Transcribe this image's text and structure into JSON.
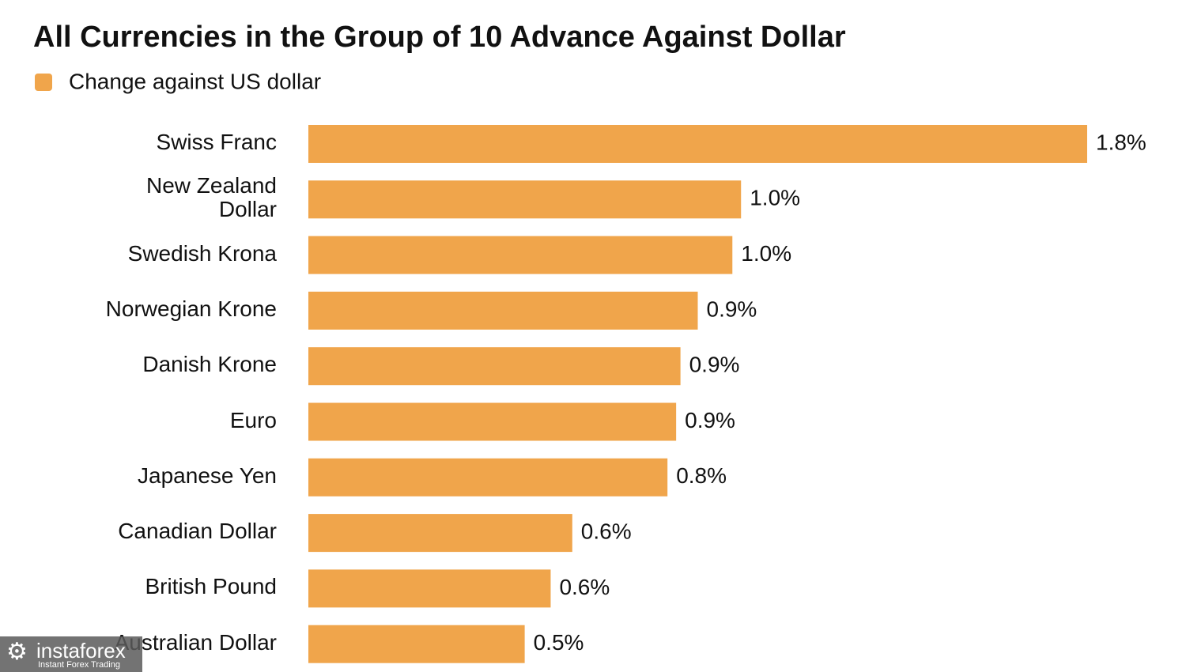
{
  "chart_data": {
    "type": "hbar",
    "title": "All Currencies in the Group of 10 Advance Against Dollar",
    "series": [
      {
        "name": "Change against US dollar",
        "color": "#f0a54b",
        "values": [
          1.8,
          1.0,
          0.98,
          0.9,
          0.86,
          0.85,
          0.83,
          0.61,
          0.56,
          0.5
        ],
        "value_labels": [
          "1.8%",
          "1.0%",
          "1.0%",
          "0.9%",
          "0.9%",
          "0.9%",
          "0.8%",
          "0.6%",
          "0.6%",
          "0.5%"
        ]
      }
    ],
    "categories": [
      "Swiss Franc",
      "New Zealand\nDollar",
      "Swedish Krona",
      "Norwegian Krone",
      "Danish Krone",
      "Euro",
      "Japanese Yen",
      "Canadian Dollar",
      "British Pound",
      "Australian Dollar"
    ],
    "xlim": [
      0,
      1.8
    ]
  },
  "watermark": {
    "brand": "instaforex",
    "tagline": "Instant Forex Trading"
  }
}
